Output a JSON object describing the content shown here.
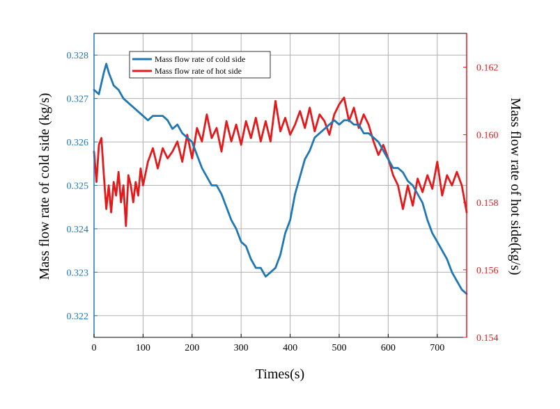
{
  "chart_data": {
    "type": "line",
    "title": "",
    "xlabel": "Times(s)",
    "ylabel_left": "Mass flow rate of cold side (kg/s)",
    "ylabel_right": "Mass flow rate of hot side(kg/s)",
    "xlim": [
      0,
      760
    ],
    "ylim_left": [
      0.3215,
      0.3285
    ],
    "ylim_right": [
      0.154,
      0.163
    ],
    "x_ticks": [
      "0",
      "100",
      "200",
      "300",
      "400",
      "500",
      "600",
      "700"
    ],
    "y_left_ticks": [
      "0.322",
      "0.323",
      "0.324",
      "0.325",
      "0.326",
      "0.327",
      "0.328"
    ],
    "y_right_ticks": [
      "0.154",
      "0.156",
      "0.158",
      "0.160",
      "0.162"
    ],
    "grid": true,
    "legend_position": "top-left",
    "colors": {
      "cold": "#1f77b4",
      "hot": "#e31a1c",
      "axis_left": "#1f77b4",
      "axis_right": "#e31a1c"
    },
    "series": [
      {
        "name": "Mass flow rate of cold side",
        "axis": "left",
        "x": [
          0,
          10,
          20,
          25,
          30,
          40,
          50,
          60,
          70,
          80,
          90,
          100,
          110,
          120,
          130,
          140,
          150,
          160,
          170,
          180,
          190,
          200,
          210,
          220,
          230,
          240,
          250,
          260,
          270,
          280,
          290,
          300,
          310,
          320,
          330,
          340,
          350,
          360,
          370,
          380,
          390,
          400,
          410,
          420,
          430,
          440,
          450,
          460,
          470,
          480,
          490,
          500,
          510,
          520,
          530,
          540,
          550,
          560,
          570,
          580,
          590,
          600,
          610,
          620,
          630,
          640,
          650,
          660,
          670,
          680,
          690,
          700,
          710,
          720,
          730,
          740,
          750,
          760
        ],
        "values": [
          0.3272,
          0.3271,
          0.3276,
          0.3278,
          0.3276,
          0.3273,
          0.3272,
          0.327,
          0.3269,
          0.3268,
          0.3267,
          0.3266,
          0.3265,
          0.3266,
          0.3266,
          0.3266,
          0.3265,
          0.3263,
          0.3264,
          0.3262,
          0.3261,
          0.326,
          0.3257,
          0.3254,
          0.3252,
          0.325,
          0.325,
          0.3248,
          0.3245,
          0.3242,
          0.324,
          0.3237,
          0.3236,
          0.3233,
          0.3231,
          0.3231,
          0.3229,
          0.323,
          0.3231,
          0.3234,
          0.3239,
          0.3242,
          0.3248,
          0.3252,
          0.3256,
          0.3258,
          0.3261,
          0.3262,
          0.3263,
          0.3264,
          0.3265,
          0.3264,
          0.3265,
          0.3265,
          0.3264,
          0.3264,
          0.3262,
          0.3262,
          0.3261,
          0.326,
          0.3258,
          0.3256,
          0.3254,
          0.3254,
          0.3253,
          0.3251,
          0.325,
          0.3248,
          0.3246,
          0.3242,
          0.3239,
          0.3237,
          0.3235,
          0.3233,
          0.323,
          0.3228,
          0.3226,
          0.3225
        ]
      },
      {
        "name": "Mass flow rate of hot side",
        "axis": "right",
        "x": [
          0,
          5,
          10,
          15,
          20,
          25,
          30,
          35,
          40,
          45,
          50,
          55,
          60,
          65,
          70,
          75,
          80,
          85,
          90,
          95,
          100,
          110,
          120,
          130,
          140,
          150,
          160,
          170,
          180,
          190,
          200,
          210,
          220,
          230,
          240,
          250,
          260,
          270,
          280,
          290,
          300,
          310,
          320,
          330,
          340,
          350,
          360,
          370,
          380,
          390,
          400,
          410,
          420,
          430,
          440,
          450,
          460,
          470,
          480,
          490,
          500,
          510,
          520,
          530,
          540,
          550,
          560,
          570,
          580,
          590,
          600,
          610,
          620,
          630,
          640,
          650,
          660,
          670,
          680,
          690,
          700,
          710,
          720,
          730,
          740,
          750,
          760
        ],
        "values": [
          0.1595,
          0.1586,
          0.1597,
          0.1599,
          0.1588,
          0.1578,
          0.1585,
          0.1577,
          0.1586,
          0.1582,
          0.1589,
          0.158,
          0.1585,
          0.1573,
          0.1588,
          0.1585,
          0.158,
          0.1586,
          0.1582,
          0.159,
          0.1585,
          0.1592,
          0.1596,
          0.159,
          0.1596,
          0.1593,
          0.1595,
          0.1598,
          0.1592,
          0.16,
          0.1593,
          0.1602,
          0.1598,
          0.1606,
          0.1599,
          0.1602,
          0.1595,
          0.1604,
          0.1598,
          0.1603,
          0.1597,
          0.1604,
          0.1599,
          0.1605,
          0.1598,
          0.1604,
          0.1598,
          0.161,
          0.1601,
          0.1605,
          0.16,
          0.1603,
          0.1607,
          0.1602,
          0.1608,
          0.1601,
          0.1606,
          0.1604,
          0.16,
          0.1606,
          0.1609,
          0.1611,
          0.1604,
          0.1608,
          0.1602,
          0.1606,
          0.1603,
          0.1598,
          0.1594,
          0.1597,
          0.1593,
          0.1588,
          0.1585,
          0.1578,
          0.1585,
          0.1579,
          0.1587,
          0.1583,
          0.1588,
          0.1584,
          0.1592,
          0.1582,
          0.1588,
          0.1585,
          0.1589,
          0.1585,
          0.1577
        ]
      }
    ]
  }
}
